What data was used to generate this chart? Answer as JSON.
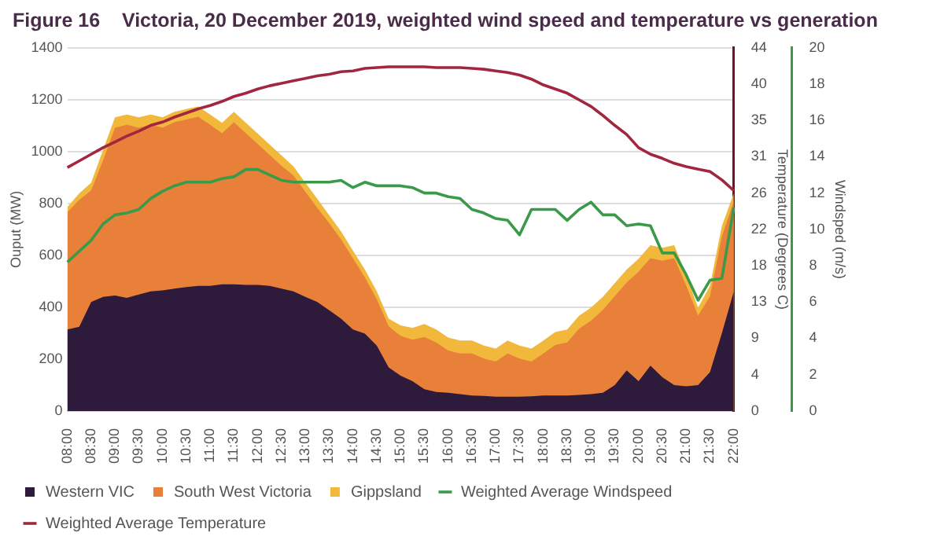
{
  "chart_data": {
    "type": "area",
    "title": "Figure 16    Victoria, 20 December 2019, weighted wind speed and temperature vs generation",
    "ylabel": "Ouput (MW)",
    "y2label": "Temperature (Degrees C)",
    "y3label": "Windsped (m/s)",
    "categories": [
      "08:00",
      null,
      "08:30",
      null,
      "09:00",
      null,
      "09:30",
      null,
      "10:00",
      null,
      "10:30",
      null,
      "11:00",
      null,
      "11:30",
      null,
      "12:00",
      null,
      "12:30",
      null,
      "13:00",
      null,
      "13:30",
      null,
      "14:00",
      null,
      "14:30",
      null,
      "15:00",
      null,
      "15:30",
      null,
      "16:00",
      null,
      "16:30",
      null,
      "17:00",
      null,
      "17:30",
      null,
      "18:00",
      null,
      "18:30",
      null,
      "19:00",
      null,
      "19:30",
      null,
      "20:00",
      null,
      "20:30",
      null,
      "21:00",
      null,
      "21:30",
      null,
      "22:00"
    ],
    "series": [
      {
        "name": "Western VIC",
        "color": "#2e1a3a",
        "values": [
          314,
          325,
          420,
          440,
          445,
          436,
          449,
          461,
          465,
          472,
          478,
          482,
          482,
          488,
          488,
          486,
          486,
          482,
          472,
          461,
          440,
          420,
          388,
          356,
          314,
          298,
          252,
          168,
          136,
          115,
          84,
          73,
          70,
          65,
          60,
          58,
          55,
          55,
          55,
          57,
          60,
          60,
          60,
          62,
          65,
          70,
          100,
          157,
          115,
          175,
          130,
          100,
          95,
          100,
          150,
          300,
          460
        ]
      },
      {
        "name": "South West Victoria",
        "color": "#e8803a",
        "values": [
          452,
          489,
          430,
          526,
          647,
          667,
          643,
          642,
          627,
          641,
          646,
          652,
          621,
          583,
          625,
          585,
          543,
          505,
          473,
          447,
          405,
          363,
          337,
          306,
          274,
          217,
          179,
          158,
          154,
          160,
          201,
          191,
          163,
          157,
          162,
          144,
          136,
          167,
          147,
          134,
          162,
          194,
          204,
          255,
          283,
          320,
          343,
          338,
          422,
          414,
          449,
          489,
          389,
          268,
          292,
          373,
          349
        ]
      },
      {
        "name": "Gippsland",
        "color": "#f2b83c",
        "values": [
          20,
          25,
          30,
          40,
          40,
          40,
          40,
          40,
          40,
          40,
          40,
          40,
          40,
          40,
          40,
          40,
          40,
          40,
          40,
          35,
          35,
          35,
          30,
          30,
          30,
          30,
          30,
          30,
          40,
          45,
          50,
          50,
          50,
          50,
          50,
          50,
          50,
          50,
          50,
          50,
          50,
          50,
          50,
          50,
          50,
          50,
          50,
          50,
          50,
          50,
          50,
          50,
          40,
          30,
          40,
          40,
          30
        ]
      },
      {
        "name": "Weighted Average Windspeed",
        "type": "line",
        "axis": "y3",
        "color": "#3a9a4a",
        "values": [
          8.2,
          8.8,
          9.4,
          10.3,
          10.8,
          10.9,
          11.1,
          11.7,
          12.1,
          12.4,
          12.6,
          12.6,
          12.6,
          12.8,
          12.9,
          13.3,
          13.3,
          13.0,
          12.7,
          12.6,
          12.6,
          12.6,
          12.6,
          12.7,
          12.3,
          12.6,
          12.4,
          12.4,
          12.4,
          12.3,
          12.0,
          12.0,
          11.8,
          11.7,
          11.1,
          10.9,
          10.6,
          10.5,
          9.7,
          11.1,
          11.1,
          11.1,
          10.5,
          11.1,
          11.5,
          10.8,
          10.8,
          10.2,
          10.3,
          10.2,
          8.7,
          8.7,
          7.5,
          6.1,
          7.2,
          7.3,
          11.2
        ]
      },
      {
        "name": "Weighted Average Temperature",
        "type": "line",
        "axis": "y2",
        "color": "#a3263f",
        "values": [
          29.5,
          30.3,
          31.1,
          31.9,
          32.6,
          33.3,
          33.9,
          34.6,
          35.0,
          35.6,
          36.1,
          36.6,
          37.0,
          37.5,
          38.1,
          38.5,
          39.0,
          39.4,
          39.7,
          40.0,
          40.3,
          40.6,
          40.8,
          41.1,
          41.2,
          41.5,
          41.6,
          41.7,
          41.7,
          41.7,
          41.7,
          41.6,
          41.6,
          41.6,
          41.5,
          41.4,
          41.2,
          41.0,
          40.7,
          40.2,
          39.5,
          39.0,
          38.5,
          37.7,
          36.9,
          35.8,
          34.6,
          33.5,
          31.9,
          31.1,
          30.6,
          30.0,
          29.6,
          29.3,
          29.0,
          28.0,
          26.7
        ]
      }
    ],
    "stacked": true,
    "ylim": [
      0,
      1400
    ],
    "yticks": [
      0,
      200,
      400,
      600,
      800,
      1000,
      1200,
      1400
    ],
    "y2lim": [
      0,
      44
    ],
    "y2ticks": [
      0,
      {
        "value": 4.4,
        "label": "4"
      },
      {
        "value": 8.8,
        "label": "9"
      },
      {
        "value": 13.2,
        "label": "13"
      },
      {
        "value": 17.6,
        "label": "18"
      },
      22,
      {
        "value": 26.4,
        "label": "26"
      },
      {
        "value": 30.8,
        "label": "31"
      },
      {
        "value": 35.2,
        "label": "35"
      },
      {
        "value": 39.6,
        "label": "40"
      },
      44
    ],
    "y3lim": [
      0,
      20
    ],
    "y3ticks": [
      0,
      2,
      4,
      6,
      8,
      10,
      12,
      14,
      16,
      18,
      20
    ],
    "grid": "y",
    "legend": "bottom",
    "marker": "none",
    "line_style": "solid"
  }
}
